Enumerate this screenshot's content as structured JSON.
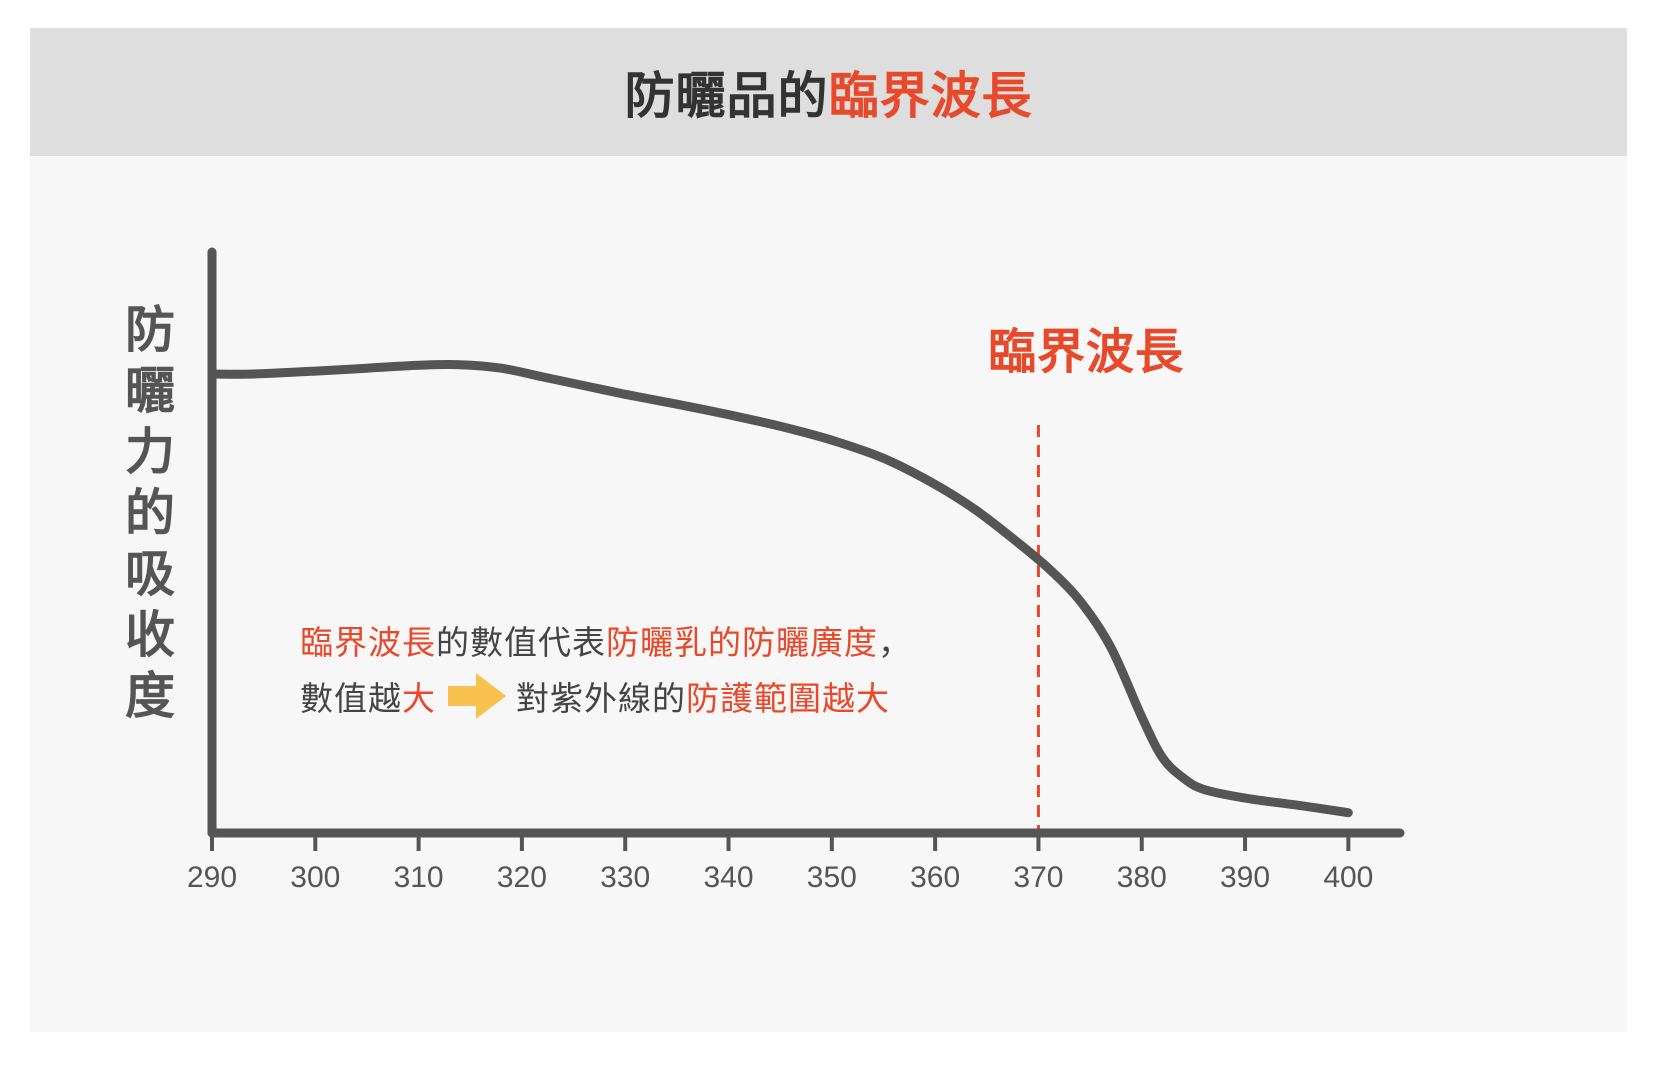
{
  "title": {
    "part1": "防曬品的",
    "part2": "臨界波長"
  },
  "colors": {
    "accent": "#e8492a",
    "curve": "#555555",
    "arrow": "#f9c24f"
  },
  "annotation": {
    "line1": {
      "a": "臨界波長",
      "b": "的數值代表",
      "c": "防曬乳的防曬廣度",
      "d": "，"
    },
    "line2": {
      "a": "數值越",
      "b": "大",
      "c": "對紫外線的",
      "d": "防護範圍越大"
    },
    "arrow_icon": "right-arrow-icon"
  },
  "chart_data": {
    "type": "line",
    "title": "防曬品的臨界波長",
    "xlabel": "",
    "ylabel": "防曬力的吸收度",
    "xlim": [
      290,
      405
    ],
    "ylim": [
      0,
      1
    ],
    "x_ticks": [
      290,
      300,
      310,
      320,
      330,
      340,
      350,
      360,
      370,
      380,
      390,
      400
    ],
    "series": [
      {
        "x": [
          290,
          294,
          300,
          305,
          310,
          314,
          318,
          322,
          326,
          330,
          335,
          340,
          345,
          350,
          355,
          360,
          364,
          368,
          371,
          374,
          377,
          380,
          382,
          384,
          386,
          390,
          395,
          400
        ],
        "y": [
          0.79,
          0.79,
          0.795,
          0.8,
          0.805,
          0.806,
          0.8,
          0.785,
          0.77,
          0.755,
          0.738,
          0.72,
          0.7,
          0.676,
          0.645,
          0.6,
          0.555,
          0.5,
          0.455,
          0.4,
          0.32,
          0.2,
          0.13,
          0.095,
          0.075,
          0.06,
          0.048,
          0.035
        ]
      }
    ],
    "critical_wavelength": {
      "x": 370,
      "label": "臨界波長"
    },
    "grid": false,
    "legend": "none"
  }
}
